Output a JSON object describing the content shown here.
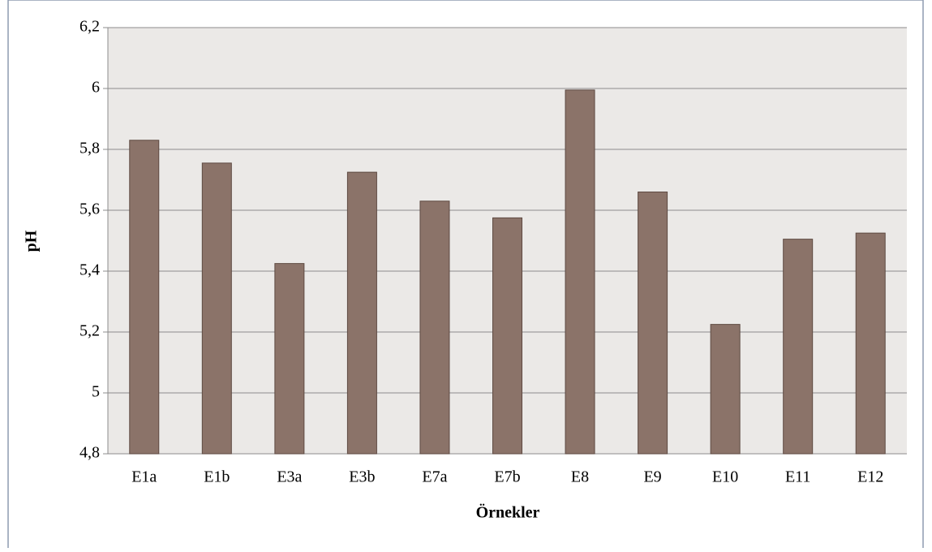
{
  "chart_data": {
    "type": "bar",
    "x_label": "Örnekler",
    "y_label": "pH",
    "categories": [
      "E1a",
      "E1b",
      "E3a",
      "E3b",
      "E7a",
      "E7b",
      "E8",
      "E9",
      "E10",
      "E11",
      "E12"
    ],
    "values": [
      5.83,
      5.755,
      5.425,
      5.725,
      5.63,
      5.575,
      5.995,
      5.66,
      5.225,
      5.505,
      5.525
    ],
    "color": "#8b7369",
    "ylim": [
      4.8,
      6.2
    ],
    "yticks": [
      {
        "value": 4.8,
        "label": "4,8"
      },
      5,
      {
        "value": 5.2,
        "label": "5,2"
      },
      {
        "value": 5.4,
        "label": "5,4"
      },
      {
        "value": 5.6,
        "label": "5,6"
      },
      {
        "value": 5.8,
        "label": "5,8"
      },
      6,
      {
        "value": 6.2,
        "label": "6,2"
      }
    ],
    "grid": true
  }
}
